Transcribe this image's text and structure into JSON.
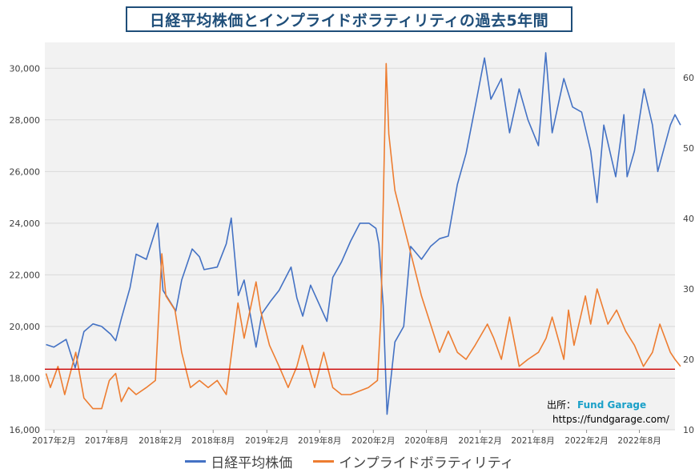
{
  "chart_data": {
    "type": "line",
    "title": "日経平均株価とインプライドボラティリティの過去5年間",
    "x_range": [
      "2017-01",
      "2022-12"
    ],
    "x_tick_labels": [
      "2017年2月",
      "2017年8月",
      "2018年2月",
      "2018年8月",
      "2019年2月",
      "2019年8月",
      "2020年2月",
      "2020年8月",
      "2021年2月",
      "2021年8月",
      "2022年2月",
      "2022年8月"
    ],
    "y_left": {
      "min": 16000,
      "max": 31000,
      "ticks": [
        16000,
        18000,
        20000,
        22000,
        24000,
        26000,
        28000,
        30000
      ],
      "tick_labels": [
        "16,000",
        "18,000",
        "20,000",
        "22,000",
        "24,000",
        "26,000",
        "28,000",
        "30,000"
      ]
    },
    "y_right": {
      "min": 10,
      "max": 65,
      "ticks": [
        10,
        20,
        30,
        40,
        50,
        60
      ],
      "tick_labels": [
        "10",
        "20",
        "30",
        "40",
        "50",
        "60"
      ]
    },
    "reference_line": {
      "axis": "right",
      "value": 18.6,
      "color": "#cc0000"
    },
    "grid": "horizontal",
    "legend_position": "bottom",
    "series": [
      {
        "name": "日経平均株価",
        "axis": "left",
        "color": "#4472c4",
        "points": [
          [
            "2017-01-05",
            19300
          ],
          [
            "2017-02-01",
            19200
          ],
          [
            "2017-03-15",
            19500
          ],
          [
            "2017-04-15",
            18400
          ],
          [
            "2017-05-15",
            19800
          ],
          [
            "2017-06-15",
            20100
          ],
          [
            "2017-07-15",
            20000
          ],
          [
            "2017-08-15",
            19700
          ],
          [
            "2017-09-01",
            19450
          ],
          [
            "2017-09-20",
            20300
          ],
          [
            "2017-10-20",
            21500
          ],
          [
            "2017-11-10",
            22800
          ],
          [
            "2017-12-15",
            22600
          ],
          [
            "2018-01-23",
            24000
          ],
          [
            "2018-02-10",
            21400
          ],
          [
            "2018-03-26",
            20600
          ],
          [
            "2018-04-15",
            21800
          ],
          [
            "2018-05-21",
            23000
          ],
          [
            "2018-06-15",
            22700
          ],
          [
            "2018-07-01",
            22200
          ],
          [
            "2018-08-15",
            22300
          ],
          [
            "2018-09-15",
            23200
          ],
          [
            "2018-10-02",
            24200
          ],
          [
            "2018-10-26",
            21200
          ],
          [
            "2018-11-15",
            21800
          ],
          [
            "2018-12-26",
            19200
          ],
          [
            "2019-01-15",
            20500
          ],
          [
            "2019-02-15",
            21000
          ],
          [
            "2019-03-15",
            21400
          ],
          [
            "2019-04-25",
            22300
          ],
          [
            "2019-05-15",
            21100
          ],
          [
            "2019-06-04",
            20400
          ],
          [
            "2019-07-01",
            21600
          ],
          [
            "2019-08-26",
            20200
          ],
          [
            "2019-09-15",
            21900
          ],
          [
            "2019-10-15",
            22500
          ],
          [
            "2019-11-15",
            23300
          ],
          [
            "2019-12-17",
            24000
          ],
          [
            "2020-01-17",
            24000
          ],
          [
            "2020-02-10",
            23800
          ],
          [
            "2020-02-20",
            23200
          ],
          [
            "2020-03-06",
            20800
          ],
          [
            "2020-03-19",
            16600
          ],
          [
            "2020-04-15",
            19400
          ],
          [
            "2020-05-15",
            20000
          ],
          [
            "2020-06-08",
            23100
          ],
          [
            "2020-07-15",
            22600
          ],
          [
            "2020-08-15",
            23100
          ],
          [
            "2020-09-15",
            23400
          ],
          [
            "2020-10-15",
            23500
          ],
          [
            "2020-11-15",
            25500
          ],
          [
            "2020-12-15",
            26700
          ],
          [
            "2021-01-15",
            28500
          ],
          [
            "2021-02-16",
            30400
          ],
          [
            "2021-03-10",
            28800
          ],
          [
            "2021-04-15",
            29600
          ],
          [
            "2021-05-13",
            27500
          ],
          [
            "2021-06-15",
            29200
          ],
          [
            "2021-07-15",
            28000
          ],
          [
            "2021-08-20",
            27000
          ],
          [
            "2021-09-14",
            30600
          ],
          [
            "2021-10-06",
            27500
          ],
          [
            "2021-11-15",
            29600
          ],
          [
            "2021-12-15",
            28500
          ],
          [
            "2022-01-15",
            28300
          ],
          [
            "2022-02-15",
            26800
          ],
          [
            "2022-03-09",
            24800
          ],
          [
            "2022-04-01",
            27800
          ],
          [
            "2022-05-12",
            25800
          ],
          [
            "2022-06-09",
            28200
          ],
          [
            "2022-06-20",
            25800
          ],
          [
            "2022-07-15",
            26800
          ],
          [
            "2022-08-17",
            29200
          ],
          [
            "2022-09-15",
            27800
          ],
          [
            "2022-10-03",
            26000
          ],
          [
            "2022-11-15",
            27800
          ],
          [
            "2022-12-01",
            28200
          ],
          [
            "2022-12-20",
            27800
          ]
        ]
      },
      {
        "name": "インプライドボラティリティ",
        "axis": "right",
        "color": "#ed7d31",
        "points": [
          [
            "2017-01-05",
            18
          ],
          [
            "2017-01-20",
            16
          ],
          [
            "2017-02-15",
            19
          ],
          [
            "2017-03-10",
            15
          ],
          [
            "2017-04-17",
            21
          ],
          [
            "2017-05-15",
            14.5
          ],
          [
            "2017-06-15",
            13
          ],
          [
            "2017-07-15",
            13
          ],
          [
            "2017-08-10",
            17
          ],
          [
            "2017-09-01",
            18
          ],
          [
            "2017-09-20",
            14
          ],
          [
            "2017-10-15",
            16
          ],
          [
            "2017-11-10",
            15
          ],
          [
            "2017-12-15",
            16
          ],
          [
            "2018-01-15",
            17
          ],
          [
            "2018-02-06",
            35
          ],
          [
            "2018-02-20",
            29
          ],
          [
            "2018-03-23",
            27
          ],
          [
            "2018-04-15",
            21
          ],
          [
            "2018-05-15",
            16
          ],
          [
            "2018-06-15",
            17
          ],
          [
            "2018-07-15",
            16
          ],
          [
            "2018-08-15",
            17
          ],
          [
            "2018-09-15",
            15
          ],
          [
            "2018-10-25",
            28
          ],
          [
            "2018-11-15",
            23
          ],
          [
            "2018-12-26",
            31
          ],
          [
            "2019-01-10",
            27
          ],
          [
            "2019-02-10",
            22
          ],
          [
            "2019-03-15",
            19
          ],
          [
            "2019-04-15",
            16
          ],
          [
            "2019-05-15",
            19
          ],
          [
            "2019-06-03",
            22
          ],
          [
            "2019-07-15",
            16
          ],
          [
            "2019-08-15",
            21
          ],
          [
            "2019-09-15",
            16
          ],
          [
            "2019-10-15",
            15
          ],
          [
            "2019-11-15",
            15
          ],
          [
            "2019-12-15",
            15.5
          ],
          [
            "2020-01-15",
            16
          ],
          [
            "2020-02-15",
            17
          ],
          [
            "2020-02-27",
            26
          ],
          [
            "2020-03-16",
            62
          ],
          [
            "2020-03-25",
            52
          ],
          [
            "2020-04-15",
            44
          ],
          [
            "2020-05-15",
            39
          ],
          [
            "2020-06-15",
            34
          ],
          [
            "2020-07-15",
            29
          ],
          [
            "2020-08-15",
            25
          ],
          [
            "2020-09-15",
            21
          ],
          [
            "2020-10-15",
            24
          ],
          [
            "2020-11-15",
            21
          ],
          [
            "2020-12-15",
            20
          ],
          [
            "2021-01-15",
            22
          ],
          [
            "2021-02-26",
            25
          ],
          [
            "2021-03-20",
            23
          ],
          [
            "2021-04-15",
            20
          ],
          [
            "2021-05-13",
            26
          ],
          [
            "2021-06-15",
            19
          ],
          [
            "2021-07-15",
            20
          ],
          [
            "2021-08-20",
            21
          ],
          [
            "2021-09-15",
            23
          ],
          [
            "2021-10-06",
            26
          ],
          [
            "2021-11-15",
            20
          ],
          [
            "2021-12-01",
            27
          ],
          [
            "2021-12-20",
            22
          ],
          [
            "2022-01-28",
            29
          ],
          [
            "2022-02-15",
            25
          ],
          [
            "2022-03-09",
            30
          ],
          [
            "2022-04-15",
            25
          ],
          [
            "2022-05-15",
            27
          ],
          [
            "2022-06-15",
            24
          ],
          [
            "2022-07-15",
            22
          ],
          [
            "2022-08-15",
            19
          ],
          [
            "2022-09-15",
            21
          ],
          [
            "2022-10-10",
            25
          ],
          [
            "2022-11-15",
            21
          ],
          [
            "2022-12-01",
            20
          ],
          [
            "2022-12-20",
            19
          ]
        ]
      }
    ]
  },
  "source": {
    "label": "出所：",
    "name": "Fund Garage",
    "url": "https://fundgarage.com/"
  }
}
